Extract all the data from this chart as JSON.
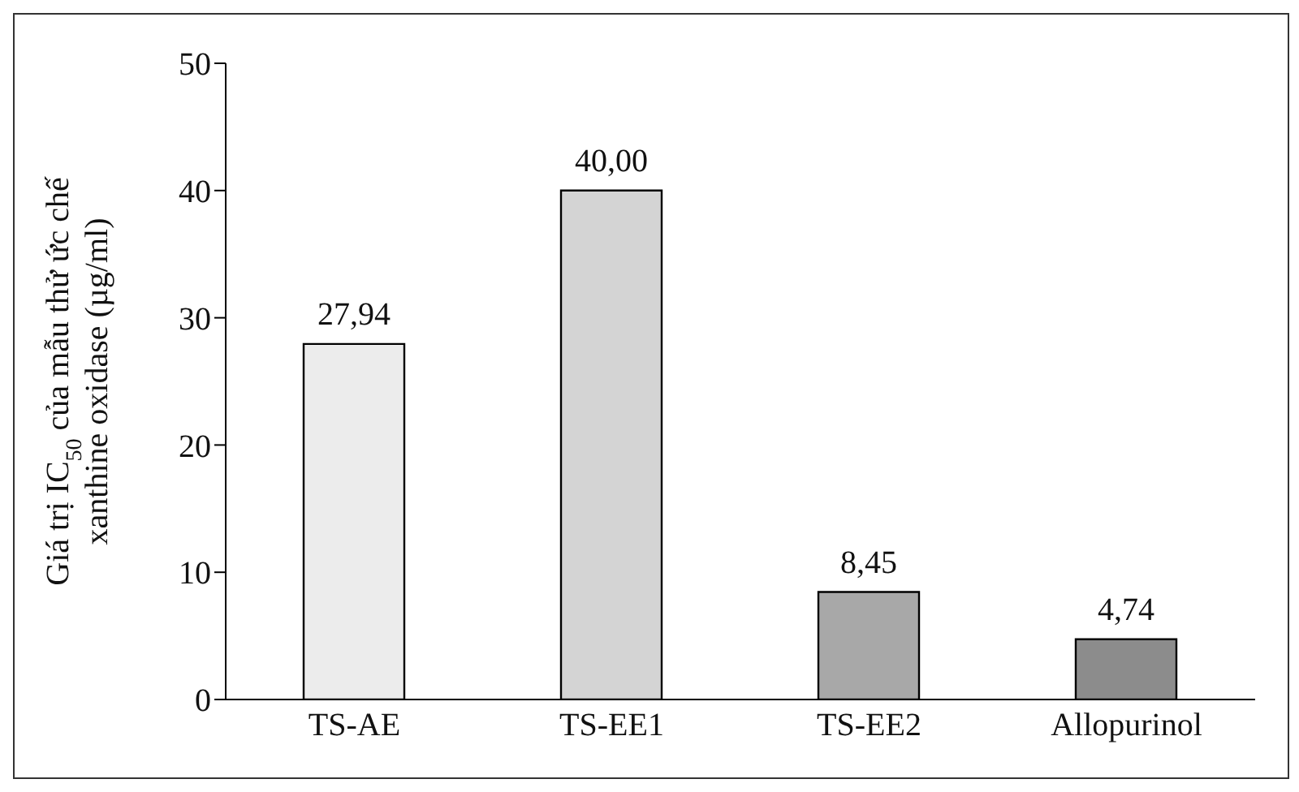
{
  "chart_data": {
    "type": "bar",
    "ylabel": "Giá trị IC$_{50}$ của mẫu thử ức chế\nxanthine oxidase (µg/ml)",
    "categories": [
      "TS-AE",
      "TS-EE1",
      "TS-EE2",
      "Allopurinol"
    ],
    "values": [
      27.94,
      40.0,
      8.45,
      4.74
    ],
    "value_labels": [
      "27,94",
      "40,00",
      "8,45",
      "4,74"
    ],
    "colors": [
      "#ececec",
      "#d4d4d4",
      "#a8a8a8",
      "#8c8c8c"
    ],
    "ylim": [
      0,
      50
    ],
    "yticks": [
      0,
      10,
      20,
      30,
      40,
      50
    ],
    "grid": false
  }
}
